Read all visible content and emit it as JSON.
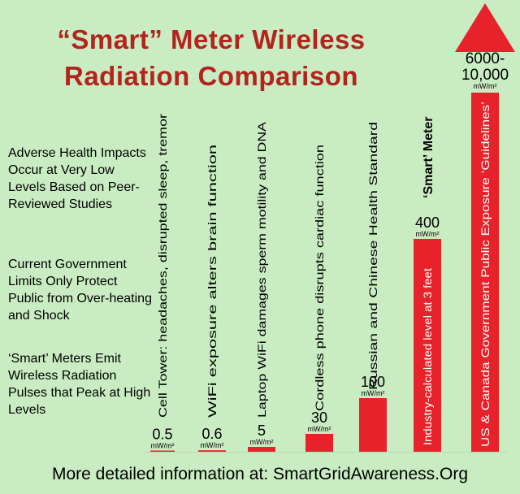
{
  "title_line1": "“Smart” Meter Wireless",
  "title_line2": "Radiation Comparison",
  "side_notes": [
    "Adverse Health Impacts Occur at Very Low Levels Based on Peer-Reviewed Studies",
    "Current Government Limits Only Protect Public from Over-heating and Shock",
    "‘Smart’ Meters Emit Wireless Radiation Pulses that Peak at High Levels"
  ],
  "footer": "More detailed information at: SmartGridAwareness.Org",
  "colors": {
    "bar": "#e8222a",
    "title": "#b2241c",
    "background": "#c9ecc2"
  },
  "chart_data": {
    "type": "bar",
    "categories": [
      "Cell Tower: headaches, disrupted sleep, tremor",
      "WiFi exposure alters brain function",
      "Laptop WiFi damages sperm motility and DNA",
      "Cordless phone disrupts cardiac function",
      "Russian and Chinese Health Standard",
      "Industry-calculated level at 3 feet",
      "US & Canada Government Public Exposure ‘Guidelines’"
    ],
    "values": [
      0.5,
      0.6,
      5,
      30,
      100,
      400,
      10000
    ],
    "value_labels": [
      "0.5",
      "0.6",
      "5",
      "30",
      "100",
      "400",
      "6000-\n10,000"
    ],
    "unit": "mW/m²",
    "bar_annotation": {
      "index": 5,
      "text": "‘Smart’ Meter"
    },
    "last_bar_arrow": true,
    "title": "",
    "xlabel": "",
    "ylabel": ""
  }
}
